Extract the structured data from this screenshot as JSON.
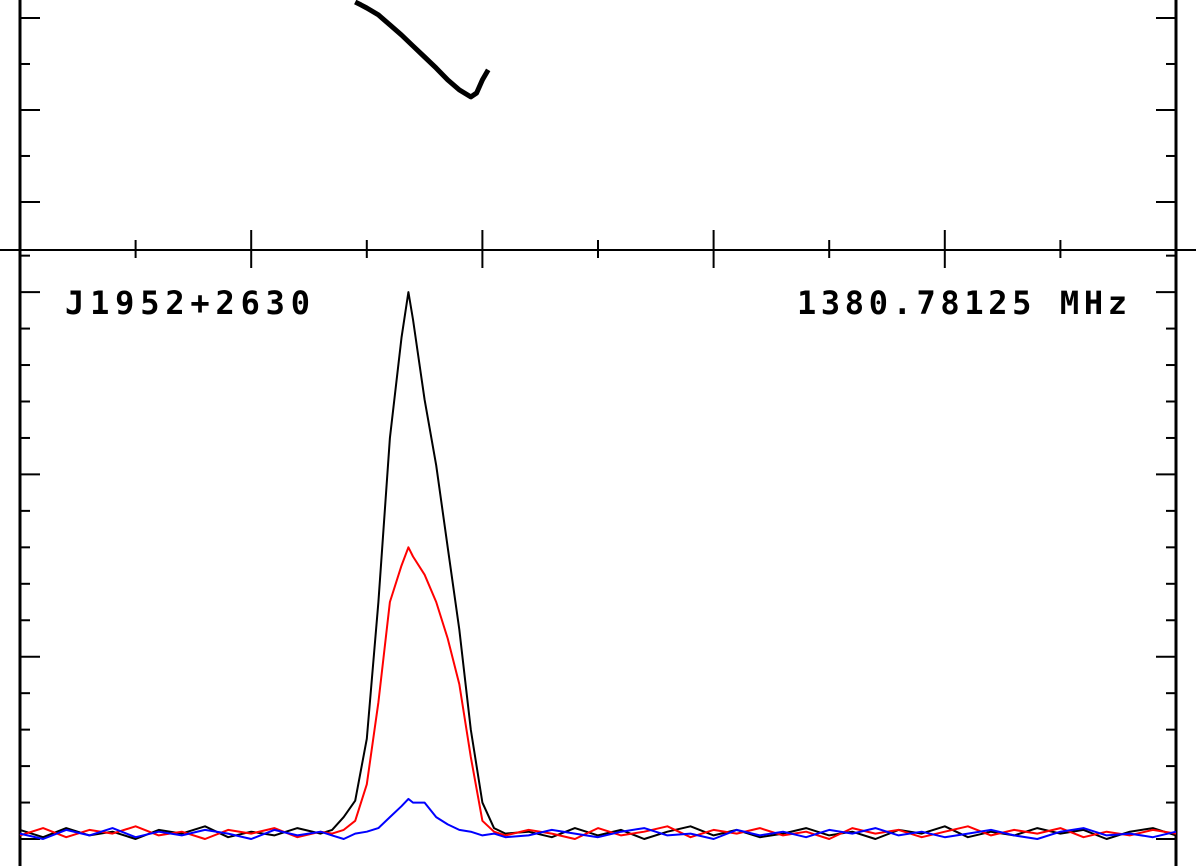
{
  "chart_data": [
    {
      "type": "line",
      "color": "#000000",
      "x": [
        0.29,
        0.295,
        0.3,
        0.31,
        0.32,
        0.33,
        0.34,
        0.35,
        0.36,
        0.37,
        0.38,
        0.39,
        0.395,
        0.4,
        0.405
      ],
      "values": [
        52.8,
        51.4,
        49.9,
        46.5,
        41.6,
        36.7,
        31.3,
        25.9,
        20.5,
        14.7,
        9.8,
        6.4,
        8.3,
        14.7,
        19.6
      ],
      "xlim": [
        0,
        1
      ],
      "xticks": [
        0.1,
        0.2,
        0.3,
        0.4,
        0.5,
        0.6,
        0.7,
        0.8,
        0.9
      ],
      "ylim": [
        -68.5,
        53.8
      ],
      "yticks": [
        -45,
        -22.5,
        0,
        22.5,
        45
      ]
    },
    {
      "type": "line",
      "annotations": [
        "J1952+2630",
        "1380.78125 MHz"
      ],
      "x": [
        0,
        0.02,
        0.04,
        0.06,
        0.08,
        0.1,
        0.12,
        0.14,
        0.16,
        0.18,
        0.2,
        0.22,
        0.24,
        0.26,
        0.27,
        0.28,
        0.29,
        0.3,
        0.31,
        0.32,
        0.33,
        0.336,
        0.34,
        0.35,
        0.36,
        0.37,
        0.38,
        0.39,
        0.4,
        0.41,
        0.42,
        0.44,
        0.46,
        0.48,
        0.5,
        0.52,
        0.54,
        0.56,
        0.58,
        0.6,
        0.62,
        0.64,
        0.66,
        0.68,
        0.7,
        0.72,
        0.74,
        0.76,
        0.78,
        0.8,
        0.82,
        0.84,
        0.86,
        0.88,
        0.9,
        0.92,
        0.94,
        0.96,
        0.98,
        1.0
      ],
      "series": [
        {
          "color": "#000000",
          "values": [
            0.05,
            0.01,
            0.06,
            0.02,
            0.04,
            0.0,
            0.05,
            0.03,
            0.07,
            0.01,
            0.04,
            0.02,
            0.06,
            0.03,
            0.05,
            0.12,
            0.21,
            0.55,
            1.3,
            2.2,
            2.75,
            3.0,
            2.85,
            2.41,
            2.05,
            1.6,
            1.15,
            0.6,
            0.2,
            0.06,
            0.03,
            0.04,
            0.01,
            0.06,
            0.02,
            0.05,
            0.0,
            0.04,
            0.07,
            0.02,
            0.05,
            0.01,
            0.03,
            0.06,
            0.02,
            0.04,
            0.0,
            0.05,
            0.03,
            0.07,
            0.01,
            0.04,
            0.02,
            0.06,
            0.03,
            0.05,
            0.0,
            0.04,
            0.06,
            0.02
          ]
        },
        {
          "color": "#ff0000",
          "values": [
            0.02,
            0.06,
            0.01,
            0.05,
            0.03,
            0.07,
            0.02,
            0.04,
            0.0,
            0.05,
            0.03,
            0.06,
            0.01,
            0.04,
            0.03,
            0.05,
            0.1,
            0.3,
            0.75,
            1.3,
            1.5,
            1.6,
            1.55,
            1.45,
            1.3,
            1.1,
            0.85,
            0.45,
            0.1,
            0.04,
            0.02,
            0.05,
            0.03,
            0.0,
            0.06,
            0.02,
            0.04,
            0.07,
            0.01,
            0.05,
            0.03,
            0.06,
            0.02,
            0.04,
            0.0,
            0.06,
            0.03,
            0.05,
            0.01,
            0.04,
            0.07,
            0.02,
            0.05,
            0.03,
            0.06,
            0.01,
            0.04,
            0.02,
            0.05,
            0.03
          ]
        },
        {
          "color": "#0000ff",
          "values": [
            0.03,
            0.0,
            0.05,
            0.02,
            0.06,
            0.01,
            0.04,
            0.02,
            0.05,
            0.03,
            0.0,
            0.05,
            0.02,
            0.04,
            0.02,
            0.0,
            0.03,
            0.04,
            0.06,
            0.12,
            0.18,
            0.22,
            0.2,
            0.2,
            0.12,
            0.08,
            0.05,
            0.04,
            0.02,
            0.03,
            0.01,
            0.02,
            0.05,
            0.03,
            0.01,
            0.04,
            0.06,
            0.02,
            0.03,
            0.0,
            0.05,
            0.02,
            0.04,
            0.01,
            0.05,
            0.03,
            0.06,
            0.02,
            0.04,
            0.01,
            0.03,
            0.05,
            0.02,
            0.0,
            0.04,
            0.06,
            0.02,
            0.03,
            0.01,
            0.04
          ]
        }
      ],
      "xlim": [
        0,
        1
      ],
      "xticks": [
        0.1,
        0.2,
        0.3,
        0.4,
        0.5,
        0.6,
        0.7,
        0.8,
        0.9
      ],
      "ylim": [
        -0.148,
        3.231
      ],
      "yticks": [
        0,
        0.2,
        0.4,
        0.6,
        0.8,
        1,
        1.2,
        1.4,
        1.6,
        1.8,
        2,
        2.2,
        2.4,
        2.6,
        2.8,
        3,
        3.2
      ]
    }
  ]
}
